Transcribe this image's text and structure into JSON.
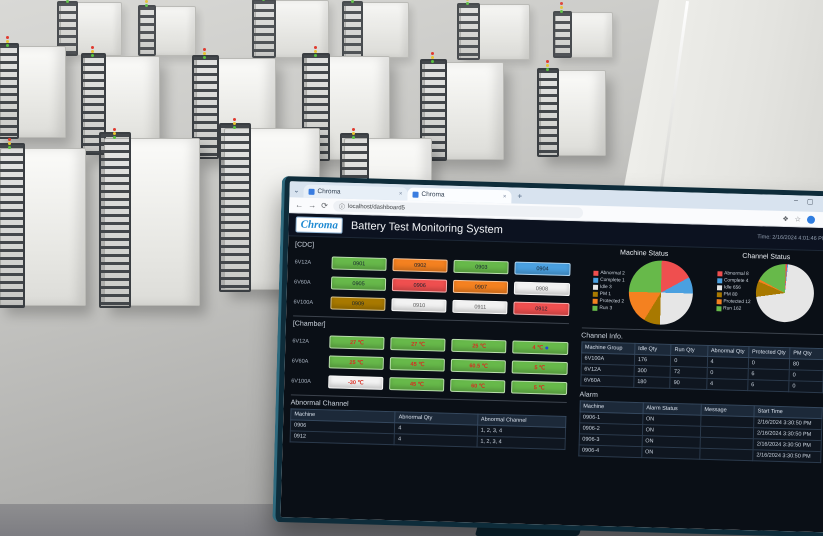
{
  "browser": {
    "tabs": [
      {
        "label": "Chroma"
      },
      {
        "label": "Chroma"
      }
    ],
    "tab_close_glyph": "×",
    "new_tab_label": "+",
    "window_controls": {
      "minimize": "–",
      "maximize": "▢",
      "close": "✕"
    },
    "nav": {
      "back": "←",
      "forward": "→",
      "reload": "⟳"
    },
    "url": {
      "info_icon": "ⓘ",
      "text": "localhost/dashboard5"
    },
    "toolbar_right": {
      "bookmark": "☆",
      "extensions": "❖",
      "menu": "⋮"
    }
  },
  "dashboard": {
    "logo_text": "Chroma",
    "title": "Battery Test Monitoring System",
    "time_label": "Time: 2/16/2024 4:01:46 PM",
    "status_colors": {
      "run": "#67b94a",
      "protected": "#f48120",
      "complete": "#4aa0e0",
      "abnormal": "#ef4f4f",
      "idle": "#f2f2f2",
      "pm": "#a87900"
    },
    "cdc": {
      "label": "[CDC]",
      "rows": [
        {
          "group": "6V12A",
          "cells": [
            {
              "text": "0901",
              "status": "run"
            },
            {
              "text": "0902",
              "status": "protected"
            },
            {
              "text": "0903",
              "status": "run"
            },
            {
              "text": "0904",
              "status": "complete"
            }
          ]
        },
        {
          "group": "6V60A",
          "cells": [
            {
              "text": "0905",
              "status": "run"
            },
            {
              "text": "0906",
              "status": "abnormal"
            },
            {
              "text": "0907",
              "status": "protected"
            },
            {
              "text": "0908",
              "status": "idle"
            }
          ]
        },
        {
          "group": "6V100A",
          "cells": [
            {
              "text": "0909",
              "status": "pm"
            },
            {
              "text": "0910",
              "status": "idle"
            },
            {
              "text": "0911",
              "status": "idle"
            },
            {
              "text": "0912",
              "status": "abnormal"
            }
          ]
        }
      ]
    },
    "chamber": {
      "label": "[Chamber]",
      "rows": [
        {
          "group": "6V12A",
          "cells": [
            {
              "text": "27 ℃",
              "status": "run"
            },
            {
              "text": "27 ℃",
              "status": "run"
            },
            {
              "text": "25 ℃",
              "status": "run"
            },
            {
              "text": "4 ℃",
              "status": "run",
              "dot": true
            }
          ]
        },
        {
          "group": "6V60A",
          "cells": [
            {
              "text": "25 ℃",
              "status": "run"
            },
            {
              "text": "45 ℃",
              "status": "run"
            },
            {
              "text": "60.5 ℃",
              "status": "run"
            },
            {
              "text": "5 ℃",
              "status": "run"
            }
          ]
        },
        {
          "group": "6V100A",
          "cells": [
            {
              "text": "-30 ℃",
              "status": "idle"
            },
            {
              "text": "45 ℃",
              "status": "run"
            },
            {
              "text": "60 ℃",
              "status": "run"
            },
            {
              "text": "5 ℃",
              "status": "run"
            }
          ]
        }
      ]
    },
    "abnormal_channel": {
      "title": "Abnormal Channel",
      "headers": [
        "Machine",
        "Abnormal Qty",
        "Abnormal Channel"
      ],
      "col_widths": [
        "38%",
        "30%",
        "32%"
      ],
      "rows": [
        [
          "0906",
          "4",
          "1, 2, 3, 4"
        ],
        [
          "0912",
          "4",
          "1, 2, 3, 4"
        ]
      ]
    },
    "channel_info": {
      "title": "Channel Info.",
      "headers": [
        "Machine Group",
        "Idle Qty",
        "Run Qty",
        "Abnormal Qty",
        "Protected Qty",
        "PM Qty"
      ],
      "col_widths": [
        "22%",
        "15%",
        "15%",
        "17%",
        "17%",
        "14%"
      ],
      "rows": [
        [
          "6V100A",
          "176",
          "0",
          "4",
          "0",
          "80"
        ],
        [
          "6V12A",
          "300",
          "72",
          "0",
          "6",
          "0"
        ],
        [
          "6V60A",
          "180",
          "90",
          "4",
          "6",
          "0"
        ]
      ]
    },
    "alarm": {
      "title": "Alarm",
      "headers": [
        "Machine",
        "Alarm Status",
        "Message",
        "Start Time"
      ],
      "col_widths": [
        "26%",
        "24%",
        "22%",
        "28%"
      ],
      "rows": [
        [
          "0906-1",
          "ON",
          "",
          "2/16/2024 3:30:50 PM"
        ],
        [
          "0906-2",
          "ON",
          "",
          "2/16/2024 3:30:50 PM"
        ],
        [
          "0906-3",
          "ON",
          "",
          "2/16/2024 3:30:50 PM"
        ],
        [
          "0906-4",
          "ON",
          "",
          "2/16/2024 3:30:50 PM"
        ]
      ]
    }
  },
  "chart_data": [
    {
      "type": "pie",
      "title": "Machine Status",
      "legend_position": "left",
      "slices": [
        {
          "label": "Abnormal",
          "value": 2,
          "color": "#ef4f4f"
        },
        {
          "label": "Complete",
          "value": 1,
          "color": "#4aa0e0"
        },
        {
          "label": "Idle",
          "value": 3,
          "color": "#e6e6e6"
        },
        {
          "label": "PM",
          "value": 1,
          "color": "#a87900"
        },
        {
          "label": "Protected",
          "value": 2,
          "color": "#f48120"
        },
        {
          "label": "Run",
          "value": 3,
          "color": "#67b94a"
        }
      ]
    },
    {
      "type": "pie",
      "title": "Channel Status",
      "legend_position": "left",
      "slices": [
        {
          "label": "Abnormal",
          "value": 8,
          "color": "#ef4f4f"
        },
        {
          "label": "Complete",
          "value": 4,
          "color": "#4aa0e0"
        },
        {
          "label": "Idle",
          "value": 656,
          "color": "#e6e6e6"
        },
        {
          "label": "PM",
          "value": 80,
          "color": "#a87900"
        },
        {
          "label": "Protected",
          "value": 12,
          "color": "#f48120"
        },
        {
          "label": "Run",
          "value": 162,
          "color": "#67b94a"
        }
      ]
    }
  ]
}
